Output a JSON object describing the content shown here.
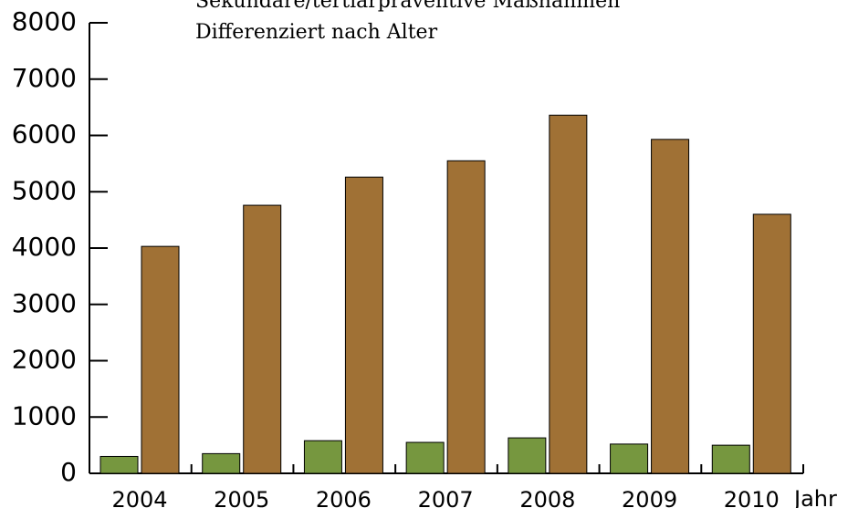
{
  "chart_data": {
    "type": "bar",
    "title": "Sekundäre/tertiärpräventive Maßnahmen",
    "subtitle": "Differenziert nach Alter",
    "x_label": "Jahr",
    "categories": [
      "2004",
      "2005",
      "2006",
      "2007",
      "2008",
      "2009",
      "2010"
    ],
    "series": [
      {
        "color": "#76973f",
        "values": [
          300,
          350,
          580,
          550,
          630,
          520,
          500
        ]
      },
      {
        "color": "#a07135",
        "values": [
          4030,
          4760,
          5260,
          5550,
          6360,
          5930,
          4600
        ]
      }
    ],
    "ylim": [
      0,
      8000
    ],
    "yticks": [
      0,
      1000,
      2000,
      3000,
      4000,
      5000,
      6000,
      7000,
      8000
    ]
  }
}
